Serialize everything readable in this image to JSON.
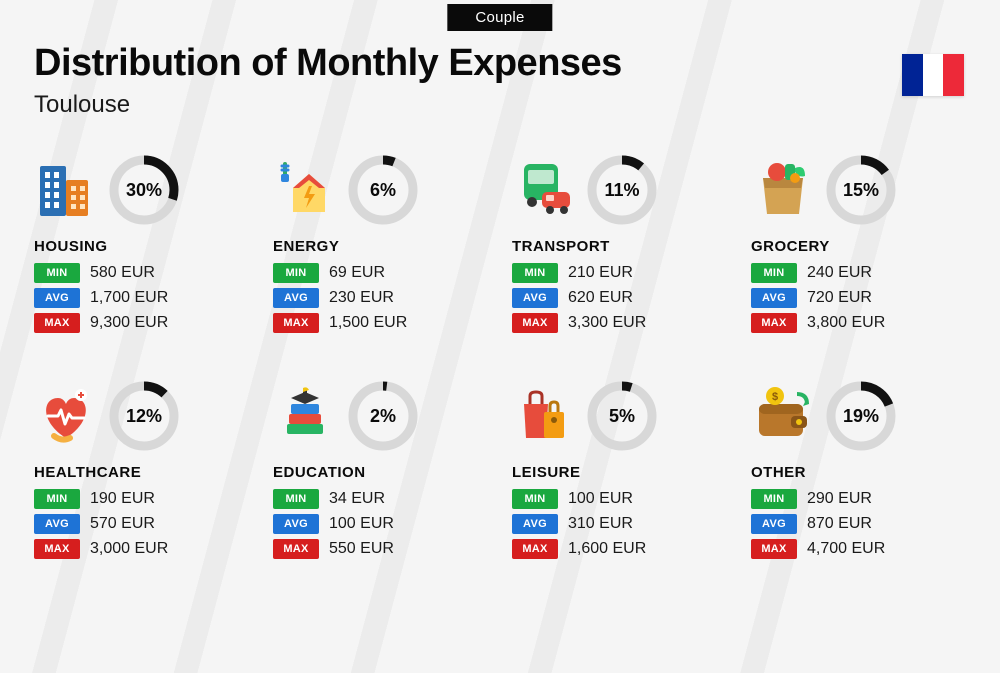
{
  "badge": "Couple",
  "title": "Distribution of Monthly Expenses",
  "subtitle": "Toulouse",
  "flag": {
    "c1": "#002395",
    "c2": "#ffffff",
    "c3": "#ed2939"
  },
  "gauge": {
    "track_color": "#d8d8d8",
    "progress_color": "#111111",
    "stroke_width": 9,
    "radius": 30
  },
  "stat_badges": {
    "min": {
      "label": "MIN",
      "bg": "#1aa83f"
    },
    "avg": {
      "label": "AVG",
      "bg": "#1e73d6"
    },
    "max": {
      "label": "MAX",
      "bg": "#d61e1e"
    }
  },
  "currency": "EUR",
  "categories": [
    {
      "key": "housing",
      "name": "HOUSING",
      "percent": 30,
      "min": "580",
      "avg": "1,700",
      "max": "9,300",
      "icon": "buildings"
    },
    {
      "key": "energy",
      "name": "ENERGY",
      "percent": 6,
      "min": "69",
      "avg": "230",
      "max": "1,500",
      "icon": "energy"
    },
    {
      "key": "transport",
      "name": "TRANSPORT",
      "percent": 11,
      "min": "210",
      "avg": "620",
      "max": "3,300",
      "icon": "transport"
    },
    {
      "key": "grocery",
      "name": "GROCERY",
      "percent": 15,
      "min": "240",
      "avg": "720",
      "max": "3,800",
      "icon": "grocery"
    },
    {
      "key": "healthcare",
      "name": "HEALTHCARE",
      "percent": 12,
      "min": "190",
      "avg": "570",
      "max": "3,000",
      "icon": "healthcare"
    },
    {
      "key": "education",
      "name": "EDUCATION",
      "percent": 2,
      "min": "34",
      "avg": "100",
      "max": "550",
      "icon": "education"
    },
    {
      "key": "leisure",
      "name": "LEISURE",
      "percent": 5,
      "min": "100",
      "avg": "310",
      "max": "1,600",
      "icon": "leisure"
    },
    {
      "key": "other",
      "name": "OTHER",
      "percent": 19,
      "min": "290",
      "avg": "870",
      "max": "4,700",
      "icon": "wallet"
    }
  ]
}
